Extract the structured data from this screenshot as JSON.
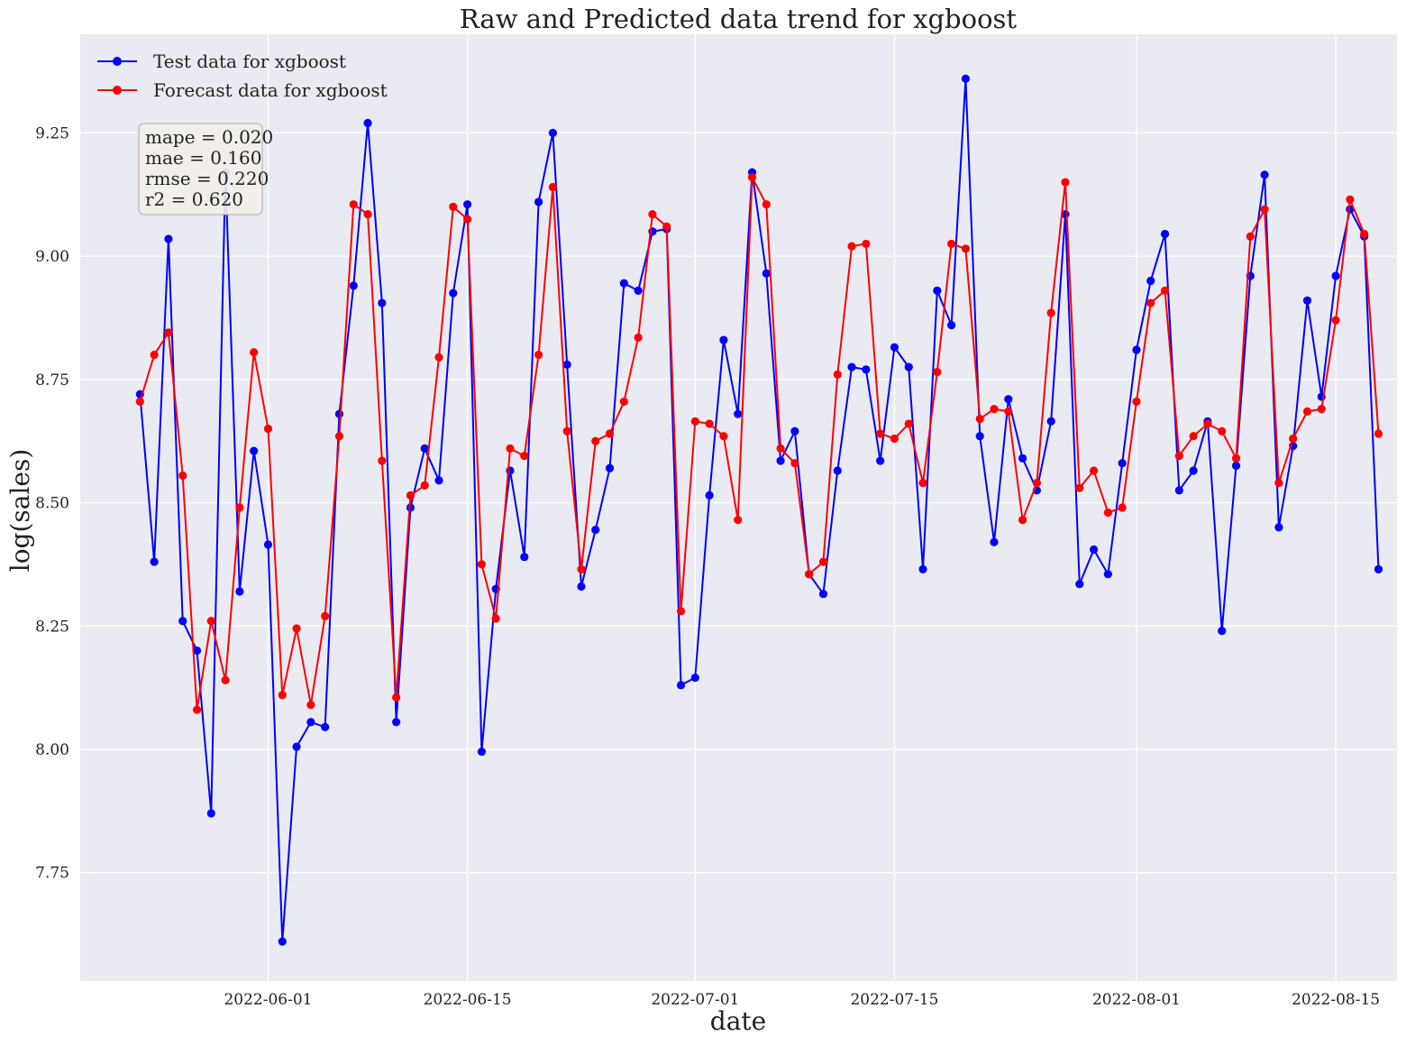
{
  "chart_data": {
    "type": "line",
    "title": "Raw and Predicted data trend for xgboost",
    "xlabel": "date",
    "ylabel": "log(sales)",
    "start_date": "2022-05-23",
    "xlim_days": [
      -4.2,
      88.3
    ],
    "ylim": [
      7.53,
      9.45
    ],
    "y_ticks": [
      7.75,
      8.0,
      8.25,
      8.5,
      8.75,
      9.0,
      9.25
    ],
    "x_ticks": [
      {
        "label": "2022-06-01",
        "day": 9
      },
      {
        "label": "2022-06-15",
        "day": 23
      },
      {
        "label": "2022-07-01",
        "day": 39
      },
      {
        "label": "2022-07-15",
        "day": 53
      },
      {
        "label": "2022-08-01",
        "day": 70
      },
      {
        "label": "2022-08-15",
        "day": 84
      }
    ],
    "grid": true,
    "legend_position": "top-left",
    "series": [
      {
        "name": "Test data for xgboost",
        "color": "#0000ff",
        "values": [
          8.72,
          8.38,
          9.035,
          8.26,
          8.2,
          7.87,
          9.17,
          8.32,
          8.605,
          8.415,
          7.61,
          8.005,
          8.055,
          8.045,
          8.68,
          8.94,
          9.27,
          8.905,
          8.055,
          8.49,
          8.61,
          8.545,
          8.925,
          9.105,
          7.995,
          8.325,
          8.565,
          8.39,
          9.11,
          9.25,
          8.78,
          8.33,
          8.445,
          8.57,
          8.945,
          8.93,
          9.05,
          9.055,
          8.13,
          8.145,
          8.515,
          8.83,
          8.68,
          9.17,
          8.965,
          8.585,
          8.645,
          8.355,
          8.315,
          8.565,
          8.775,
          8.77,
          8.585,
          8.815,
          8.775,
          8.365,
          8.93,
          8.86,
          9.36,
          8.635,
          8.42,
          8.71,
          8.59,
          8.525,
          8.665,
          9.085,
          8.335,
          8.405,
          8.355,
          8.58,
          8.81,
          8.95,
          9.045,
          8.525,
          8.565,
          8.665,
          8.24,
          8.575,
          8.96,
          9.165,
          8.45,
          8.615,
          8.91,
          8.715,
          8.96,
          9.095,
          9.04,
          8.365
        ]
      },
      {
        "name": "Forecast data for xgboost",
        "color": "#ff0000",
        "values": [
          8.705,
          8.8,
          8.845,
          8.555,
          8.08,
          8.26,
          8.14,
          8.49,
          8.805,
          8.65,
          8.11,
          8.245,
          8.09,
          8.27,
          8.635,
          9.105,
          9.085,
          8.585,
          8.105,
          8.515,
          8.535,
          8.795,
          9.1,
          9.075,
          8.375,
          8.265,
          8.61,
          8.595,
          8.8,
          9.14,
          8.645,
          8.365,
          8.625,
          8.64,
          8.705,
          8.835,
          9.085,
          9.06,
          8.28,
          8.665,
          8.66,
          8.635,
          8.465,
          9.16,
          9.105,
          8.61,
          8.58,
          8.355,
          8.38,
          8.76,
          9.02,
          9.025,
          8.64,
          8.63,
          8.66,
          8.54,
          8.765,
          9.025,
          9.015,
          8.67,
          8.69,
          8.685,
          8.465,
          8.54,
          8.885,
          9.15,
          8.53,
          8.565,
          8.48,
          8.49,
          8.705,
          8.905,
          8.93,
          8.595,
          8.635,
          8.66,
          8.645,
          8.59,
          9.04,
          9.095,
          8.54,
          8.63,
          8.685,
          8.69,
          8.87,
          9.115,
          9.045,
          8.64
        ]
      }
    ],
    "annotation": {
      "lines": [
        "mape = 0.020",
        "mae = 0.160",
        "rmse = 0.220",
        "r2 = 0.620"
      ],
      "position": "top-left"
    }
  }
}
